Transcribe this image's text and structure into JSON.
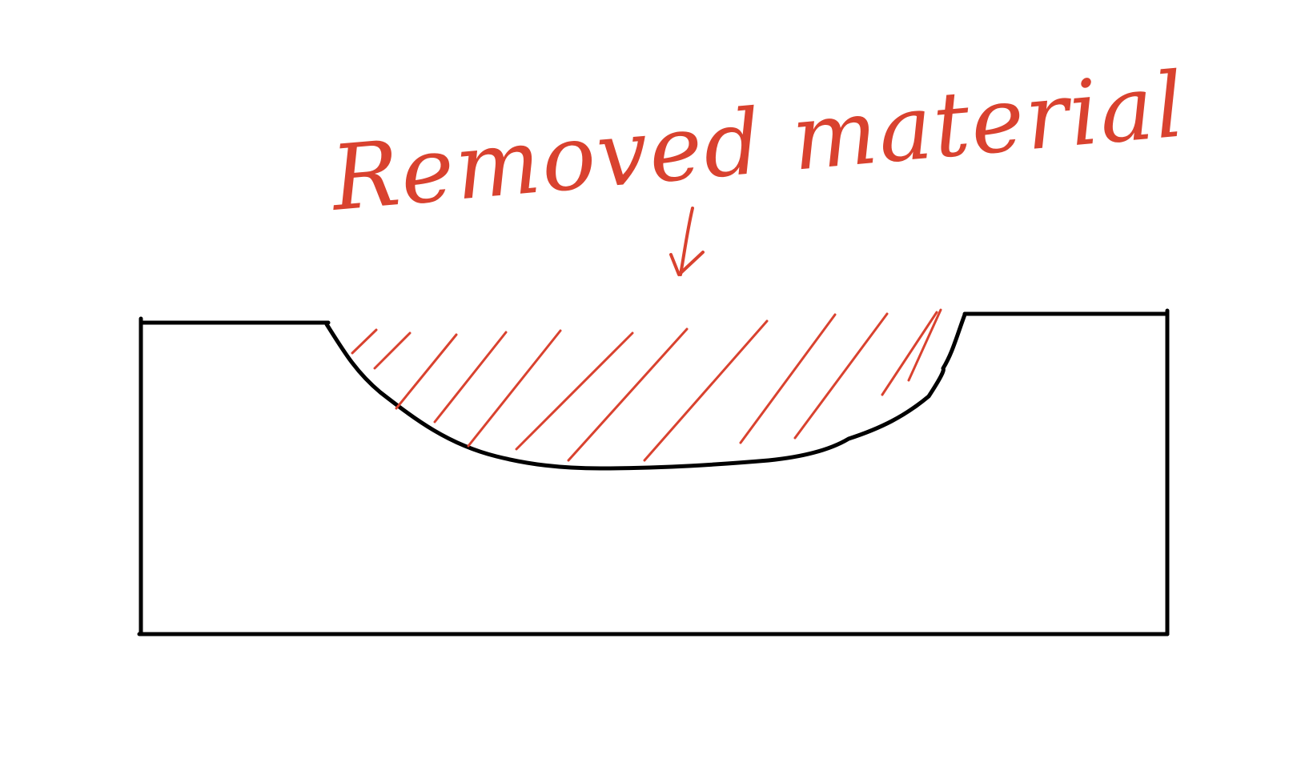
{
  "annotation": {
    "label": "Removed material"
  },
  "colors": {
    "annotation": "#d9422f",
    "outline": "#000000",
    "background": "#ffffff"
  }
}
